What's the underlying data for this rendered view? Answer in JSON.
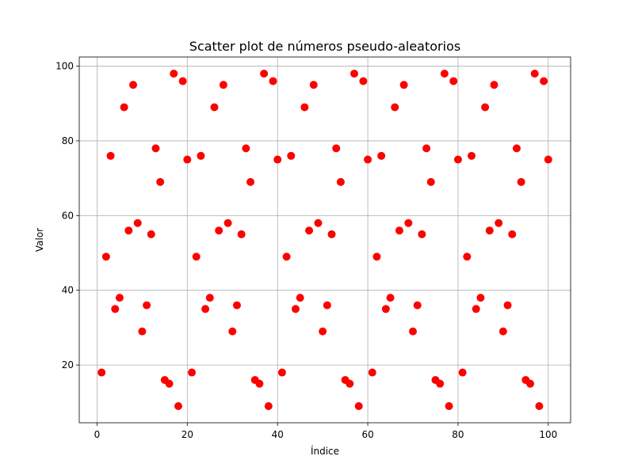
{
  "chart_data": {
    "type": "scatter",
    "title": "Scatter plot de números pseudo-aleatorios",
    "xlabel": "Índice",
    "ylabel": "Valor",
    "xlim": [
      -3.95,
      104.95
    ],
    "ylim": [
      4.55,
      102.45
    ],
    "xticks": [
      0,
      20,
      40,
      60,
      80,
      100
    ],
    "yticks": [
      20,
      40,
      60,
      80,
      100
    ],
    "grid": true,
    "marker_color": "#ff0000",
    "series": [
      {
        "x": [
          1,
          2,
          3,
          4,
          5,
          6,
          7,
          8,
          9,
          10,
          11,
          12,
          13,
          14,
          15,
          16,
          17,
          18,
          19,
          20,
          21,
          22,
          23,
          24,
          25,
          26,
          27,
          28,
          29,
          30,
          31,
          32,
          33,
          34,
          35,
          36,
          37,
          38,
          39,
          40,
          41,
          42,
          43,
          44,
          45,
          46,
          47,
          48,
          49,
          50,
          51,
          52,
          53,
          54,
          55,
          56,
          57,
          58,
          59,
          60,
          61,
          62,
          63,
          64,
          65,
          66,
          67,
          68,
          69,
          70,
          71,
          72,
          73,
          74,
          75,
          76,
          77,
          78,
          79,
          80,
          81,
          82,
          83,
          84,
          85,
          86,
          87,
          88,
          89,
          90,
          91,
          92,
          93,
          94,
          95,
          96,
          97,
          98,
          99,
          100
        ],
        "y": [
          18,
          49,
          76,
          35,
          38,
          89,
          56,
          95,
          58,
          29,
          36,
          55,
          78,
          69,
          16,
          15,
          98,
          9,
          96,
          75,
          18,
          49,
          76,
          35,
          38,
          89,
          56,
          95,
          58,
          29,
          36,
          55,
          78,
          69,
          16,
          15,
          98,
          9,
          96,
          75,
          18,
          49,
          76,
          35,
          38,
          89,
          56,
          95,
          58,
          29,
          36,
          55,
          78,
          69,
          16,
          15,
          98,
          9,
          96,
          75,
          18,
          49,
          76,
          35,
          38,
          89,
          56,
          95,
          58,
          29,
          36,
          55,
          78,
          69,
          16,
          15,
          98,
          9,
          96,
          75,
          18,
          49,
          76,
          35,
          38,
          89,
          56,
          95,
          58,
          29,
          36,
          55,
          78,
          69,
          16,
          15,
          98,
          9,
          96,
          75
        ]
      }
    ]
  }
}
